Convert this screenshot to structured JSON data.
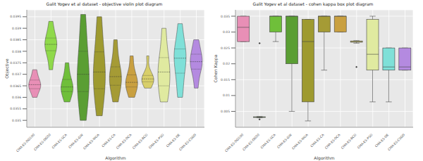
{
  "chart_data": [
    {
      "type": "violin",
      "title": "Galit Yogev et al dataset - objective violin plot diagram",
      "x_label": "Algorithm",
      "y_label": "Objective",
      "categories": [
        "CMA-ES-DG100",
        "CMA-ES-DG50",
        "CMA-ES-SCA",
        "CMA-ES-GW",
        "CMA-ES-WOA",
        "CMA-ES-CA",
        "CMA-ES-DCA",
        "CMA-ES-BCO",
        "CMA-ES-PSO",
        "CMA-ES-DE",
        "CMA-ES-CSGD"
      ],
      "colors": [
        "#e88fb6",
        "#8fd94a",
        "#6fbf3a",
        "#5a9e33",
        "#9e9a2f",
        "#a59b35",
        "#c9a040",
        "#d8cf6a",
        "#e0eaa0",
        "#7fe0d8",
        "#b48ae0"
      ],
      "samples": [
        [
          0.036,
          0.0363,
          0.0364,
          0.0365,
          0.0366,
          0.0367,
          0.0369,
          0.0372
        ],
        [
          0.0372,
          0.0378,
          0.0381,
          0.0383,
          0.0383,
          0.0385,
          0.0388,
          0.0393
        ],
        [
          0.0358,
          0.0361,
          0.0363,
          0.0364,
          0.0365,
          0.0367,
          0.037,
          0.0375
        ],
        [
          0.035,
          0.0358,
          0.0364,
          0.0368,
          0.0372,
          0.0378,
          0.0386,
          0.0396
        ],
        [
          0.0352,
          0.036,
          0.0365,
          0.0369,
          0.0373,
          0.0378,
          0.0385,
          0.0395
        ],
        [
          0.0358,
          0.0363,
          0.0366,
          0.0368,
          0.037,
          0.0372,
          0.0377,
          0.0385
        ],
        [
          0.036,
          0.0363,
          0.0365,
          0.0366,
          0.0367,
          0.0369,
          0.0372,
          0.0378
        ],
        [
          0.0364,
          0.0366,
          0.0367,
          0.0368,
          0.0368,
          0.0369,
          0.0371,
          0.0378
        ],
        [
          0.0358,
          0.0362,
          0.0366,
          0.037,
          0.0372,
          0.0376,
          0.0381,
          0.039
        ],
        [
          0.036,
          0.0366,
          0.0372,
          0.0376,
          0.0378,
          0.038,
          0.0384,
          0.0392
        ],
        [
          0.0364,
          0.037,
          0.0373,
          0.0375,
          0.0376,
          0.0378,
          0.0381,
          0.0385
        ]
      ],
      "ylim": [
        0.0347,
        0.0398
      ],
      "yticks": [
        0.035,
        0.0355,
        0.036,
        0.0365,
        0.037,
        0.0375,
        0.038,
        0.0385,
        0.039,
        0.0395
      ],
      "grid": true
    },
    {
      "type": "box",
      "title": "Galit Yogev et al dataset - cohen kappa box plot diagram",
      "x_label": "Algorithm",
      "y_label": "Cohen Kappa",
      "categories": [
        "CMA-ES-DG100",
        "CMA-ES-DG50",
        "CMA-ES-SCA",
        "CMA-ES-GW",
        "CMA-ES-WOA",
        "CMA-ES-CA",
        "CMA-ES-DCA",
        "CMA-ES-BCO",
        "CMA-ES-PSO",
        "CMA-ES-DE",
        "CMA-ES-CSGD"
      ],
      "colors": [
        "#e88fb6",
        "#8fd94a",
        "#6fbf3a",
        "#5a9e33",
        "#9e9a2f",
        "#a59b35",
        "#c9a040",
        "#d8cf6a",
        "#e0eaa0",
        "#7fe0d8",
        "#b48ae0"
      ],
      "min": [
        0.027,
        0.003,
        0.027,
        0.005,
        0.002,
        0.018,
        0.03,
        0.0265,
        0.008,
        0.008,
        0.018
      ],
      "q1": [
        0.027,
        0.0031,
        0.03,
        0.02,
        0.008,
        0.03,
        0.03,
        0.0268,
        0.018,
        0.018,
        0.018
      ],
      "median": [
        0.0315,
        0.0032,
        0.035,
        0.035,
        0.027,
        0.035,
        0.035,
        0.027,
        0.023,
        0.019,
        0.019
      ],
      "q3": [
        0.035,
        0.0033,
        0.035,
        0.035,
        0.034,
        0.035,
        0.035,
        0.0272,
        0.034,
        0.025,
        0.025
      ],
      "max": [
        0.035,
        0.0034,
        0.035,
        0.035,
        0.034,
        0.035,
        0.035,
        0.0273,
        0.035,
        0.025,
        0.025
      ],
      "outliers": [
        [],
        [
          0.0265,
          0.0025
        ],
        [],
        [],
        [],
        [],
        [],
        [
          0.019
        ],
        [],
        [],
        []
      ],
      "ylim": [
        0.0,
        0.037
      ],
      "yticks": [
        0.005,
        0.01,
        0.015,
        0.02,
        0.025,
        0.03,
        0.035
      ],
      "grid": true
    }
  ]
}
